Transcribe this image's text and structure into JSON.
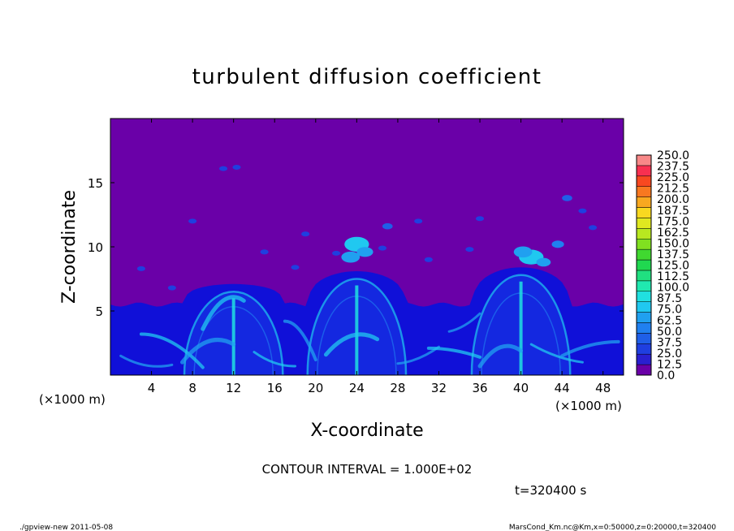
{
  "chart_data": {
    "type": "heatmap",
    "title": "turbulent diffusion coefficient",
    "xlabel": "X-coordinate",
    "ylabel": "Z-coordinate",
    "x_unit": "(×1000 m)",
    "y_unit": "(×1000 m)",
    "xlim": [
      0,
      50
    ],
    "ylim": [
      0,
      20
    ],
    "x_ticks": [
      4,
      8,
      12,
      16,
      20,
      24,
      28,
      32,
      36,
      40,
      44,
      48
    ],
    "y_ticks": [
      5,
      10,
      15
    ],
    "colorbar": {
      "levels": [
        "0.0",
        "12.5",
        "25.0",
        "37.5",
        "50.0",
        "62.5",
        "75.0",
        "87.5",
        "100.0",
        "112.5",
        "125.0",
        "137.5",
        "150.0",
        "162.5",
        "175.0",
        "187.5",
        "200.0",
        "212.5",
        "225.0",
        "237.5",
        "250.0"
      ],
      "colors": [
        "#6a00a8",
        "#2a1fd0",
        "#1f3fe0",
        "#1f5fe8",
        "#2080f0",
        "#20a0f0",
        "#20c8f0",
        "#20e0e0",
        "#20e8b0",
        "#20e080",
        "#20d850",
        "#40d830",
        "#80e020",
        "#b8e820",
        "#e0e820",
        "#f8d820",
        "#f8a820",
        "#f87820",
        "#f84820",
        "#f83050",
        "#f88888"
      ],
      "background_color": "#6a00a8",
      "low_color": "#1010d8"
    },
    "features": {
      "boundary_layer_top_km": 5.5,
      "thermal_plumes": [
        {
          "x_center_km": 12,
          "top_km": 6.5
        },
        {
          "x_center_km": 24,
          "top_km": 7.5
        },
        {
          "x_center_km": 40,
          "top_km": 7.8
        }
      ]
    }
  },
  "annotations": {
    "contour_interval": "CONTOUR INTERVAL = 1.000E+02",
    "time": "t=320400 s",
    "footer_left": "./gpview-new   2011-05-08",
    "footer_right": "MarsCond_Km.nc@Km,x=0:50000,z=0:20000,t=320400"
  }
}
